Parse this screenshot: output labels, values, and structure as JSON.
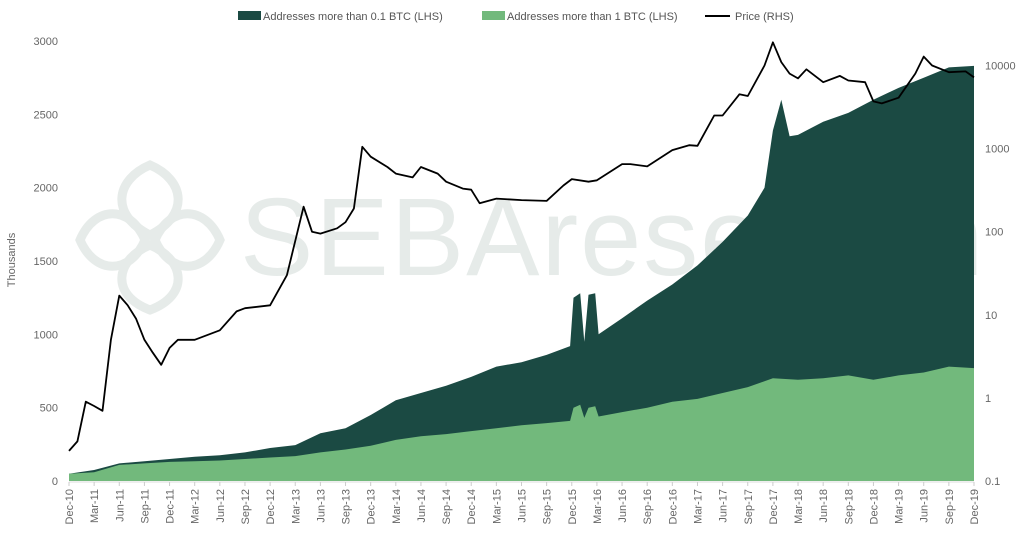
{
  "chart_data": {
    "type": "area",
    "title": "",
    "watermark": "SEBAresearch",
    "ylabel": "Thousands",
    "y2label": "",
    "ylim": [
      0,
      3000
    ],
    "y2lim_log": [
      0.1,
      20000
    ],
    "yticks": [
      "0",
      "500",
      "1000",
      "1500",
      "2000",
      "2500",
      "3000"
    ],
    "y2ticks": [
      "0.1",
      "1",
      "10",
      "100",
      "1000",
      "10000"
    ],
    "xticks": [
      "Dec-10",
      "Mar-11",
      "Jun-11",
      "Sep-11",
      "Dec-11",
      "Mar-12",
      "Jun-12",
      "Sep-12",
      "Dec-12",
      "Mar-13",
      "Jun-13",
      "Sep-13",
      "Dec-13",
      "Mar-14",
      "Jun-14",
      "Sep-14",
      "Dec-14",
      "Mar-15",
      "Jun-15",
      "Sep-15",
      "Dec-15",
      "Mar-16",
      "Jun-16",
      "Sep-16",
      "Dec-16",
      "Mar-17",
      "Jun-17",
      "Sep-17",
      "Dec-17",
      "Mar-18",
      "Jun-18",
      "Sep-18",
      "Dec-18",
      "Mar-19",
      "Jun-19",
      "Sep-19",
      "Dec-19"
    ],
    "legend_position": "top-center",
    "x_unit": "months since Dec-10",
    "series": [
      {
        "name": "Addresses more than 0.1 BTC (LHS)",
        "color": "#1b4a43",
        "axis": "left",
        "points": [
          [
            0,
            50
          ],
          [
            3,
            75
          ],
          [
            6,
            120
          ],
          [
            9,
            135
          ],
          [
            12,
            150
          ],
          [
            15,
            165
          ],
          [
            18,
            175
          ],
          [
            21,
            195
          ],
          [
            24,
            225
          ],
          [
            27,
            245
          ],
          [
            30,
            325
          ],
          [
            33,
            360
          ],
          [
            36,
            450
          ],
          [
            39,
            550
          ],
          [
            42,
            600
          ],
          [
            45,
            650
          ],
          [
            48,
            710
          ],
          [
            51,
            780
          ],
          [
            54,
            810
          ],
          [
            57,
            860
          ],
          [
            59.8,
            920
          ],
          [
            60.2,
            1250
          ],
          [
            61,
            1280
          ],
          [
            61.5,
            950
          ],
          [
            62,
            1270
          ],
          [
            62.8,
            1280
          ],
          [
            63.2,
            1000
          ],
          [
            66,
            1110
          ],
          [
            69,
            1230
          ],
          [
            72,
            1340
          ],
          [
            75,
            1470
          ],
          [
            78,
            1630
          ],
          [
            81,
            1810
          ],
          [
            83,
            2000
          ],
          [
            84,
            2390
          ],
          [
            85,
            2600
          ],
          [
            86,
            2350
          ],
          [
            87,
            2360
          ],
          [
            90,
            2450
          ],
          [
            93,
            2510
          ],
          [
            96,
            2600
          ],
          [
            99,
            2680
          ],
          [
            102,
            2750
          ],
          [
            105,
            2820
          ],
          [
            108,
            2830
          ]
        ]
      },
      {
        "name": "Addresses more than 1 BTC (LHS)",
        "color": "#72b97c",
        "axis": "left",
        "points": [
          [
            0,
            50
          ],
          [
            3,
            60
          ],
          [
            6,
            110
          ],
          [
            9,
            120
          ],
          [
            12,
            130
          ],
          [
            15,
            135
          ],
          [
            18,
            140
          ],
          [
            21,
            150
          ],
          [
            24,
            160
          ],
          [
            27,
            170
          ],
          [
            30,
            195
          ],
          [
            33,
            215
          ],
          [
            36,
            240
          ],
          [
            39,
            280
          ],
          [
            42,
            305
          ],
          [
            45,
            320
          ],
          [
            48,
            340
          ],
          [
            51,
            360
          ],
          [
            54,
            380
          ],
          [
            57,
            395
          ],
          [
            59.8,
            410
          ],
          [
            60.2,
            500
          ],
          [
            61,
            520
          ],
          [
            61.5,
            430
          ],
          [
            62,
            500
          ],
          [
            62.8,
            510
          ],
          [
            63.2,
            440
          ],
          [
            66,
            470
          ],
          [
            69,
            500
          ],
          [
            72,
            540
          ],
          [
            75,
            560
          ],
          [
            78,
            600
          ],
          [
            81,
            640
          ],
          [
            84,
            700
          ],
          [
            87,
            690
          ],
          [
            90,
            700
          ],
          [
            93,
            720
          ],
          [
            96,
            690
          ],
          [
            99,
            720
          ],
          [
            102,
            740
          ],
          [
            105,
            780
          ],
          [
            108,
            770
          ]
        ]
      },
      {
        "name": "Price (RHS)",
        "color": "#000000",
        "axis": "right",
        "points": [
          [
            0,
            0.23
          ],
          [
            1,
            0.3
          ],
          [
            2,
            0.9
          ],
          [
            3,
            0.8
          ],
          [
            4,
            0.7
          ],
          [
            5,
            5
          ],
          [
            6,
            17
          ],
          [
            7,
            13
          ],
          [
            8,
            9
          ],
          [
            9,
            5
          ],
          [
            10,
            3.5
          ],
          [
            11,
            2.5
          ],
          [
            12,
            4
          ],
          [
            13,
            5
          ],
          [
            15,
            5
          ],
          [
            18,
            6.5
          ],
          [
            20,
            11
          ],
          [
            21,
            12
          ],
          [
            24,
            13
          ],
          [
            26,
            30
          ],
          [
            28,
            200
          ],
          [
            29,
            100
          ],
          [
            30,
            95
          ],
          [
            32,
            110
          ],
          [
            33,
            130
          ],
          [
            34,
            190
          ],
          [
            35,
            1050
          ],
          [
            36,
            800
          ],
          [
            38,
            600
          ],
          [
            39,
            500
          ],
          [
            41,
            450
          ],
          [
            42,
            600
          ],
          [
            44,
            500
          ],
          [
            45,
            400
          ],
          [
            47,
            330
          ],
          [
            48,
            320
          ],
          [
            49,
            220
          ],
          [
            51,
            250
          ],
          [
            54,
            240
          ],
          [
            57,
            235
          ],
          [
            59,
            360
          ],
          [
            60,
            430
          ],
          [
            62,
            400
          ],
          [
            63,
            415
          ],
          [
            66,
            650
          ],
          [
            67,
            650
          ],
          [
            69,
            610
          ],
          [
            72,
            960
          ],
          [
            74,
            1100
          ],
          [
            75,
            1080
          ],
          [
            77,
            2500
          ],
          [
            78,
            2500
          ],
          [
            80,
            4500
          ],
          [
            81,
            4300
          ],
          [
            83,
            10000
          ],
          [
            84,
            19000
          ],
          [
            85,
            11000
          ],
          [
            86,
            8000
          ],
          [
            87,
            7000
          ],
          [
            88,
            9000
          ],
          [
            90,
            6300
          ],
          [
            92,
            7500
          ],
          [
            93,
            6600
          ],
          [
            95,
            6300
          ],
          [
            96,
            3700
          ],
          [
            97,
            3500
          ],
          [
            99,
            4100
          ],
          [
            101,
            8000
          ],
          [
            102,
            12800
          ],
          [
            103,
            10000
          ],
          [
            105,
            8300
          ],
          [
            107,
            8500
          ],
          [
            108,
            7200
          ]
        ]
      }
    ]
  }
}
